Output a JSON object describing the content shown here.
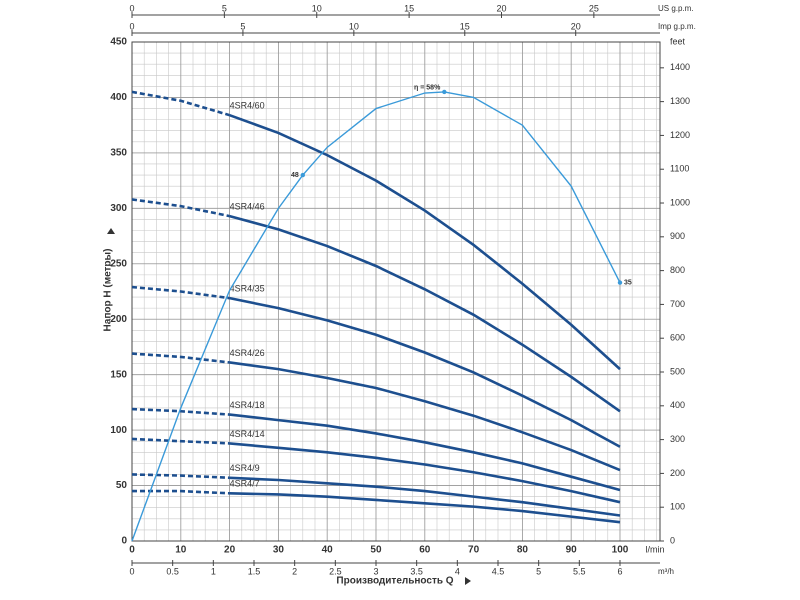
{
  "chart_data": {
    "type": "line",
    "y_label": "Напор H (метры)",
    "x_label": "Производительность Q",
    "x_unit": "l/min",
    "y2_unit": "feet",
    "xlim": [
      0,
      108.2
    ],
    "xticks": [
      0,
      10,
      20,
      30,
      40,
      50,
      60,
      70,
      80,
      90,
      100
    ],
    "ylim": [
      0,
      450
    ],
    "yticks": [
      0,
      50,
      100,
      150,
      200,
      250,
      300,
      350,
      400,
      450
    ],
    "y2lim": [
      0,
      1476.4
    ],
    "y2ticks": [
      0,
      100,
      200,
      300,
      400,
      500,
      600,
      700,
      800,
      900,
      1000,
      1100,
      1200,
      1300,
      1400
    ],
    "secondary_x_axes": [
      {
        "unit": "m³/h",
        "lim": [
          0,
          6.492
        ],
        "ticks": [
          0,
          0.5,
          1,
          1.5,
          2,
          2.5,
          3,
          3.5,
          4,
          4.5,
          5,
          5.5,
          6
        ],
        "position": "bottom"
      },
      {
        "unit": "US g.p.m.",
        "lim": [
          0,
          28.58
        ],
        "ticks": [
          0,
          5,
          10,
          15,
          20,
          25
        ],
        "position": "top"
      },
      {
        "unit": "Imp g.p.m.",
        "lim": [
          0,
          23.8
        ],
        "ticks": [
          0,
          5,
          10,
          15,
          20
        ],
        "position": "top"
      }
    ],
    "grid": true,
    "grid_step_x": 2.5,
    "grid_step_y": 10,
    "dash_until_x": 20,
    "x": [
      0,
      10,
      20,
      30,
      40,
      50,
      60,
      70,
      80,
      90,
      100
    ],
    "series": [
      {
        "name": "4SR4/60",
        "color": "#1d4f8f",
        "values": [
          405,
          397,
          384,
          368,
          348,
          325,
          298,
          267,
          232,
          195,
          155
        ]
      },
      {
        "name": "4SR4/46",
        "color": "#1d4f8f",
        "values": [
          308,
          302,
          293,
          281,
          266,
          248,
          227,
          204,
          177,
          148,
          117
        ]
      },
      {
        "name": "4SR4/35",
        "color": "#1d4f8f",
        "values": [
          229,
          225,
          219,
          210,
          199,
          186,
          170,
          152,
          131,
          109,
          85
        ]
      },
      {
        "name": "4SR4/26",
        "color": "#1d4f8f",
        "values": [
          169,
          166,
          161,
          155,
          147,
          138,
          126,
          113,
          98,
          82,
          64
        ]
      },
      {
        "name": "4SR4/18",
        "color": "#1d4f8f",
        "values": [
          119,
          117,
          114,
          109,
          104,
          97,
          89,
          80,
          70,
          58,
          46
        ]
      },
      {
        "name": "4SR4/14",
        "color": "#1d4f8f",
        "values": [
          92,
          90,
          88,
          84,
          80,
          75,
          69,
          62,
          54,
          45,
          35
        ]
      },
      {
        "name": "4SR4/9",
        "color": "#1d4f8f",
        "values": [
          60,
          59,
          57,
          55,
          52,
          49,
          45,
          40,
          35,
          29,
          23
        ]
      },
      {
        "name": "4SR4/7",
        "color": "#1d4f8f",
        "values": [
          45,
          45,
          43,
          42,
          40,
          37,
          34,
          31,
          27,
          22,
          17
        ]
      }
    ],
    "efficiency_curve": {
      "color": "#3a9ad9",
      "x": [
        0,
        10,
        20,
        30,
        35,
        40,
        50,
        60,
        64,
        70,
        80,
        90,
        100
      ],
      "values": [
        0,
        120,
        226,
        300,
        330,
        355,
        390,
        404,
        405,
        400,
        375,
        320,
        233
      ]
    },
    "annotations": [
      {
        "text": "η = 58%",
        "x": 64,
        "y": 405
      },
      {
        "text": "48",
        "x": 35,
        "y": 330
      },
      {
        "text": "35",
        "x": 100,
        "y": 233
      }
    ]
  }
}
